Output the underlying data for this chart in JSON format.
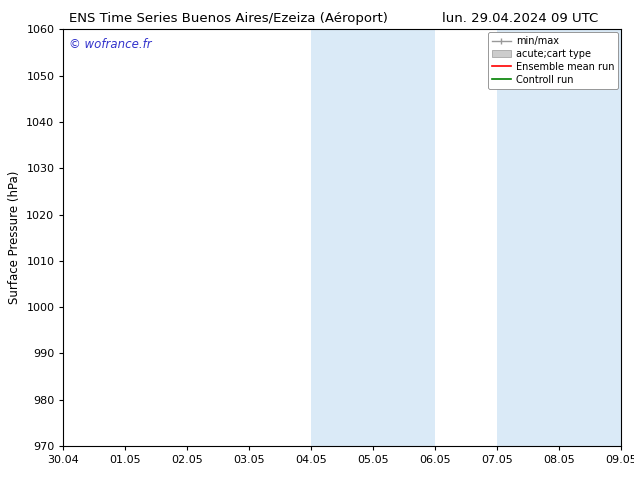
{
  "title_left": "ENS Time Series Buenos Aires/Ezeiza (Aéroport)",
  "title_right": "lun. 29.04.2024 09 UTC",
  "ylabel": "Surface Pressure (hPa)",
  "ylim": [
    970,
    1060
  ],
  "yticks": [
    970,
    980,
    990,
    1000,
    1010,
    1020,
    1030,
    1040,
    1050,
    1060
  ],
  "xtick_labels": [
    "30.04",
    "01.05",
    "02.05",
    "03.05",
    "04.05",
    "05.05",
    "06.05",
    "07.05",
    "08.05",
    "09.05"
  ],
  "xtick_positions": [
    0,
    1,
    2,
    3,
    4,
    5,
    6,
    7,
    8,
    9
  ],
  "shaded_regions": [
    {
      "xmin": 4,
      "xmax": 5,
      "color": "#daeaf7"
    },
    {
      "xmin": 5,
      "xmax": 6,
      "color": "#daeaf7"
    },
    {
      "xmin": 7,
      "xmax": 8,
      "color": "#daeaf7"
    },
    {
      "xmin": 8,
      "xmax": 9,
      "color": "#daeaf7"
    }
  ],
  "watermark": "© wofrance.fr",
  "watermark_color": "#3333cc",
  "legend_labels": [
    "min/max",
    "acute;cart type",
    "Ensemble mean run",
    "Controll run"
  ],
  "legend_colors_line": [
    "#999999",
    "#cccccc",
    "#ff0000",
    "#008000"
  ],
  "background_color": "#ffffff",
  "title_fontsize": 9.5,
  "ylabel_fontsize": 8.5,
  "tick_fontsize": 8,
  "watermark_fontsize": 8.5,
  "legend_fontsize": 7
}
